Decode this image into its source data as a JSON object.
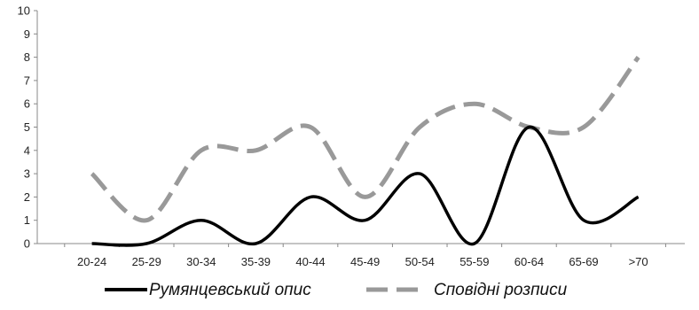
{
  "chart_data": {
    "type": "line",
    "title": "",
    "xlabel": "",
    "ylabel": "",
    "categories": [
      "20-24",
      "25-29",
      "30-34",
      "35-39",
      "40-44",
      "45-49",
      "50-54",
      "55-59",
      "60-64",
      "65-69",
      ">70"
    ],
    "ylim": [
      0,
      10
    ],
    "yticks": [
      0,
      1,
      2,
      3,
      4,
      5,
      6,
      7,
      8,
      9,
      10
    ],
    "grid": false,
    "smooth": true,
    "legend_position": "bottom",
    "series": [
      {
        "name": "Румянцевський опис",
        "color": "#000000",
        "dashed": false,
        "values": [
          0,
          0,
          1,
          0,
          2,
          1,
          3,
          0,
          5,
          1,
          2
        ]
      },
      {
        "name": "Сповідні розписи",
        "color": "#999999",
        "dashed": true,
        "values": [
          3,
          1,
          4,
          4,
          5,
          2,
          5,
          6,
          5,
          5,
          8
        ]
      }
    ]
  }
}
